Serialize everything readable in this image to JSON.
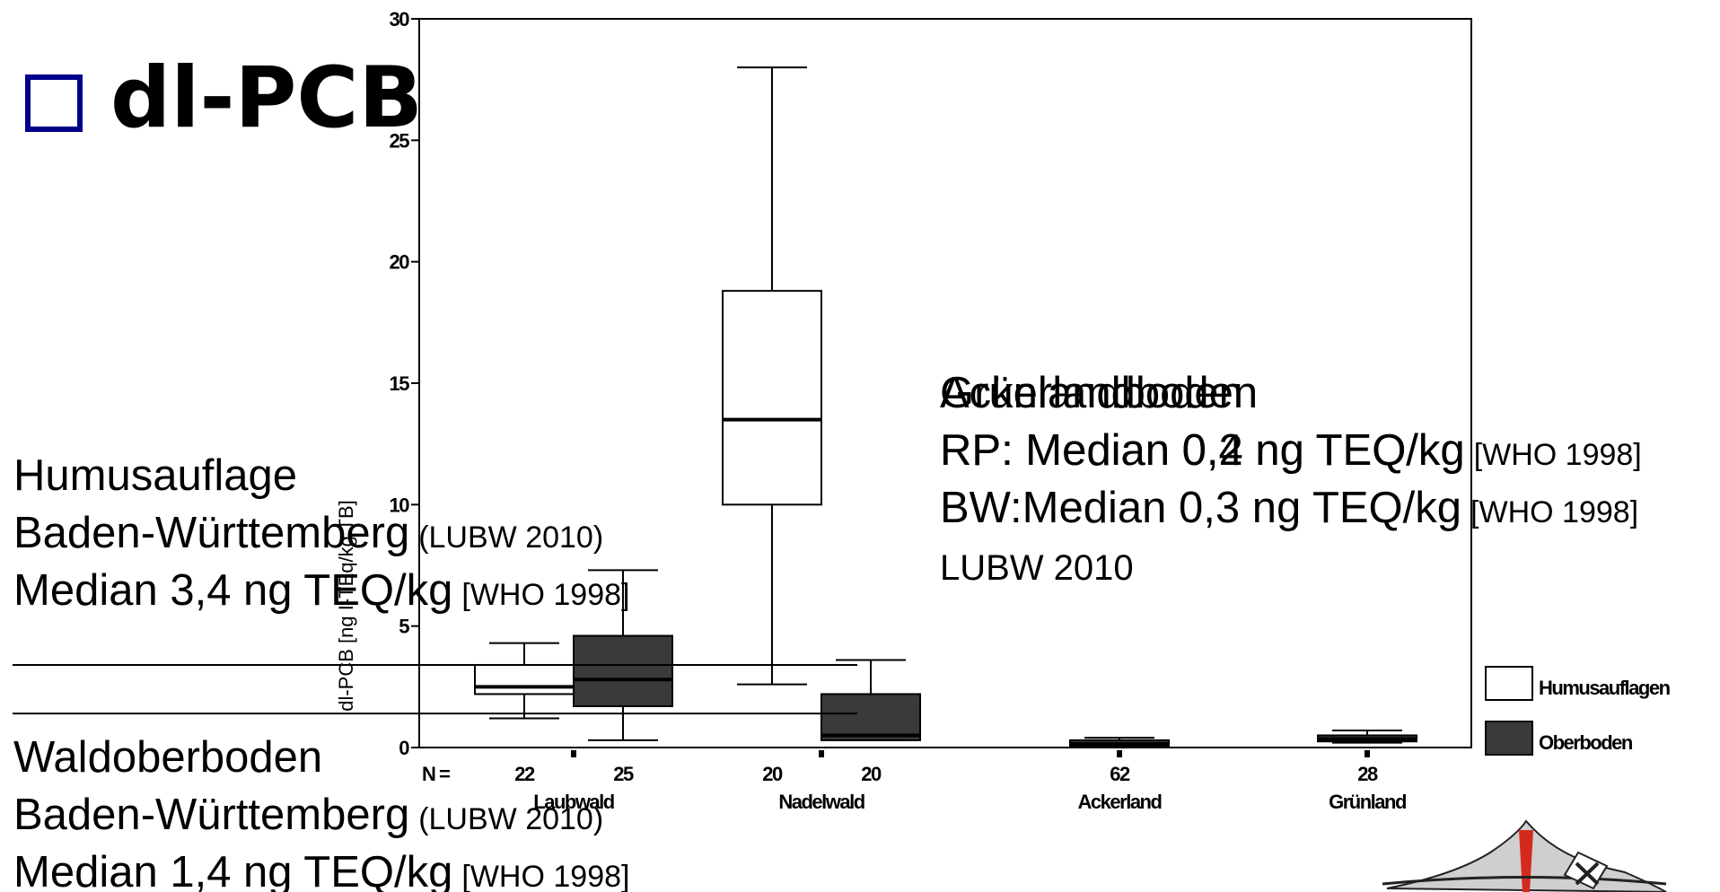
{
  "title": "dl-PCB",
  "chart_data": {
    "type": "box",
    "ylabel": "dl-PCB [ng I-TEq/kg TB]",
    "ylim": [
      0,
      30
    ],
    "yticks": [
      0,
      5,
      10,
      15,
      20,
      25,
      30
    ],
    "n_label": "N =",
    "categories": [
      "Laubwald",
      "Nadelwald",
      "Ackerland",
      "Grünland"
    ],
    "series": [
      {
        "name": "Humusauflagen",
        "color": "#ffffff",
        "boxes": [
          {
            "min": 1.2,
            "q1": 2.2,
            "median": 2.5,
            "q3": 3.4,
            "max": 4.3,
            "n": 22
          },
          {
            "min": 2.6,
            "q1": 10.0,
            "median": 13.5,
            "q3": 18.8,
            "max": 28.0,
            "n": 20
          },
          null,
          null
        ]
      },
      {
        "name": "Oberboden",
        "color": "#3a3a3a",
        "boxes": [
          {
            "min": 0.3,
            "q1": 1.7,
            "median": 2.8,
            "q3": 4.6,
            "max": 7.3,
            "n": 25
          },
          {
            "min": 0.3,
            "q1": 0.3,
            "median": 0.5,
            "q3": 2.2,
            "max": 3.6,
            "n": 20
          },
          {
            "min": 0,
            "q1": 0.05,
            "median": 0.15,
            "q3": 0.3,
            "max": 0.4,
            "n": 62
          },
          {
            "min": 0.2,
            "q1": 0.25,
            "median": 0.35,
            "q3": 0.5,
            "max": 0.7,
            "n": 28
          }
        ]
      }
    ],
    "reference_lines": [
      {
        "value": 3.4,
        "lines": [
          [
            "Humusauflage"
          ],
          [
            "Baden-Württemberg",
            "(LUBW 2010)"
          ],
          [
            "Median 3,4 ng TEQ/kg",
            "[WHO 1998]"
          ]
        ]
      },
      {
        "value": 1.4,
        "lines": [
          [
            "Waldoberboden"
          ],
          [
            "Baden-Württemberg",
            "(LUBW 2010)"
          ],
          [
            "Median 1,4 ng TEQ/kg",
            "[WHO 1998]"
          ]
        ]
      }
    ],
    "notes": [
      {
        "lines": [
          [
            "Grünlandboden"
          ],
          [
            "RP: Median 0,2 ng TEQ/kg",
            "[WHO 1998]"
          ],
          [
            "BW:Median 0,3 ng TEQ/kg",
            "[WHO 1998]"
          ],
          [
            "LUBW 2010"
          ]
        ]
      },
      {
        "lines": [
          [
            "Ackerlandboden"
          ],
          [
            "RP: Median 0,4 ng TEQ/kg"
          ]
        ]
      }
    ]
  }
}
